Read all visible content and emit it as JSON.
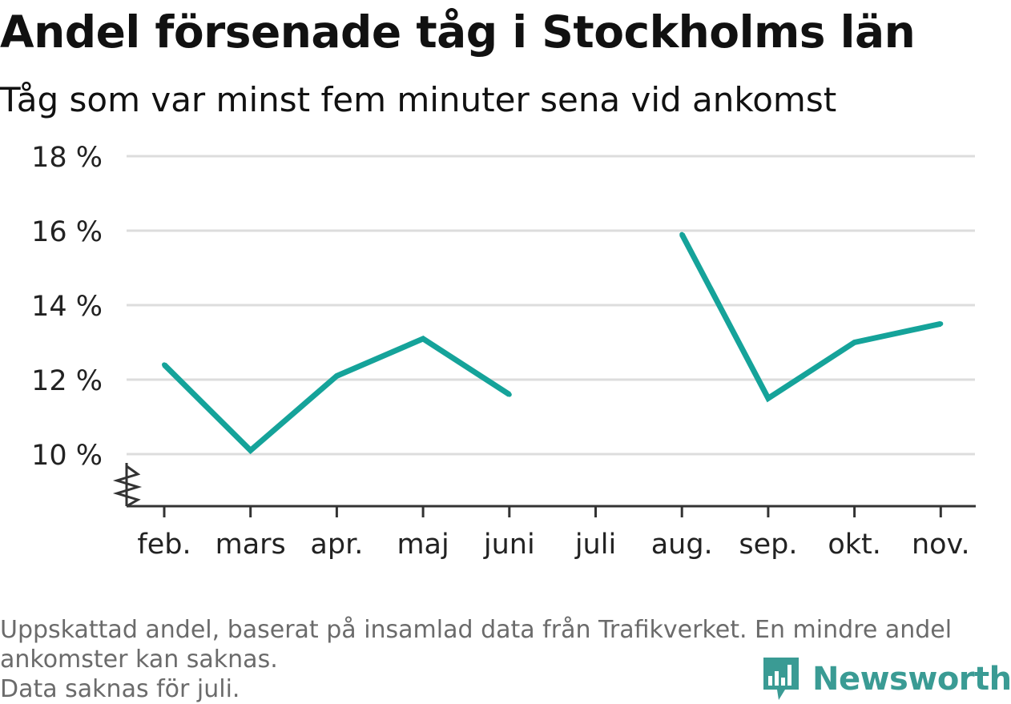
{
  "title": "Andel försenade tåg i Stockholms län",
  "subtitle": "Tåg som var minst fem minuter sena vid ankomst",
  "footer": {
    "lines": [
      "Uppskattad andel, baserat på insamlad data från Trafikverket. En mindre andel",
      "ankomster kan saknas.",
      "Data saknas för juli."
    ]
  },
  "brand": {
    "name": "Newsworthy",
    "icon": "newsworthy-logo-icon",
    "color": "#3a9b94"
  },
  "chart_data": {
    "type": "line",
    "categories": [
      "feb.",
      "mars",
      "apr.",
      "maj",
      "juni",
      "juli",
      "aug.",
      "sep.",
      "okt.",
      "nov."
    ],
    "series": [
      {
        "values": [
          12.4,
          10.1,
          12.1,
          13.1,
          11.6,
          null,
          15.9,
          11.5,
          13.0,
          13.5
        ],
        "color": "#15a39a"
      }
    ],
    "yticks": [
      10,
      12,
      14,
      16,
      18
    ],
    "ytick_labels": [
      "10 %",
      "12 %",
      "14 %",
      "16 %",
      "18 %"
    ],
    "ylim": [
      10,
      18
    ],
    "y_axis_break": true,
    "grid": true,
    "xlabel": "",
    "ylabel": ""
  }
}
